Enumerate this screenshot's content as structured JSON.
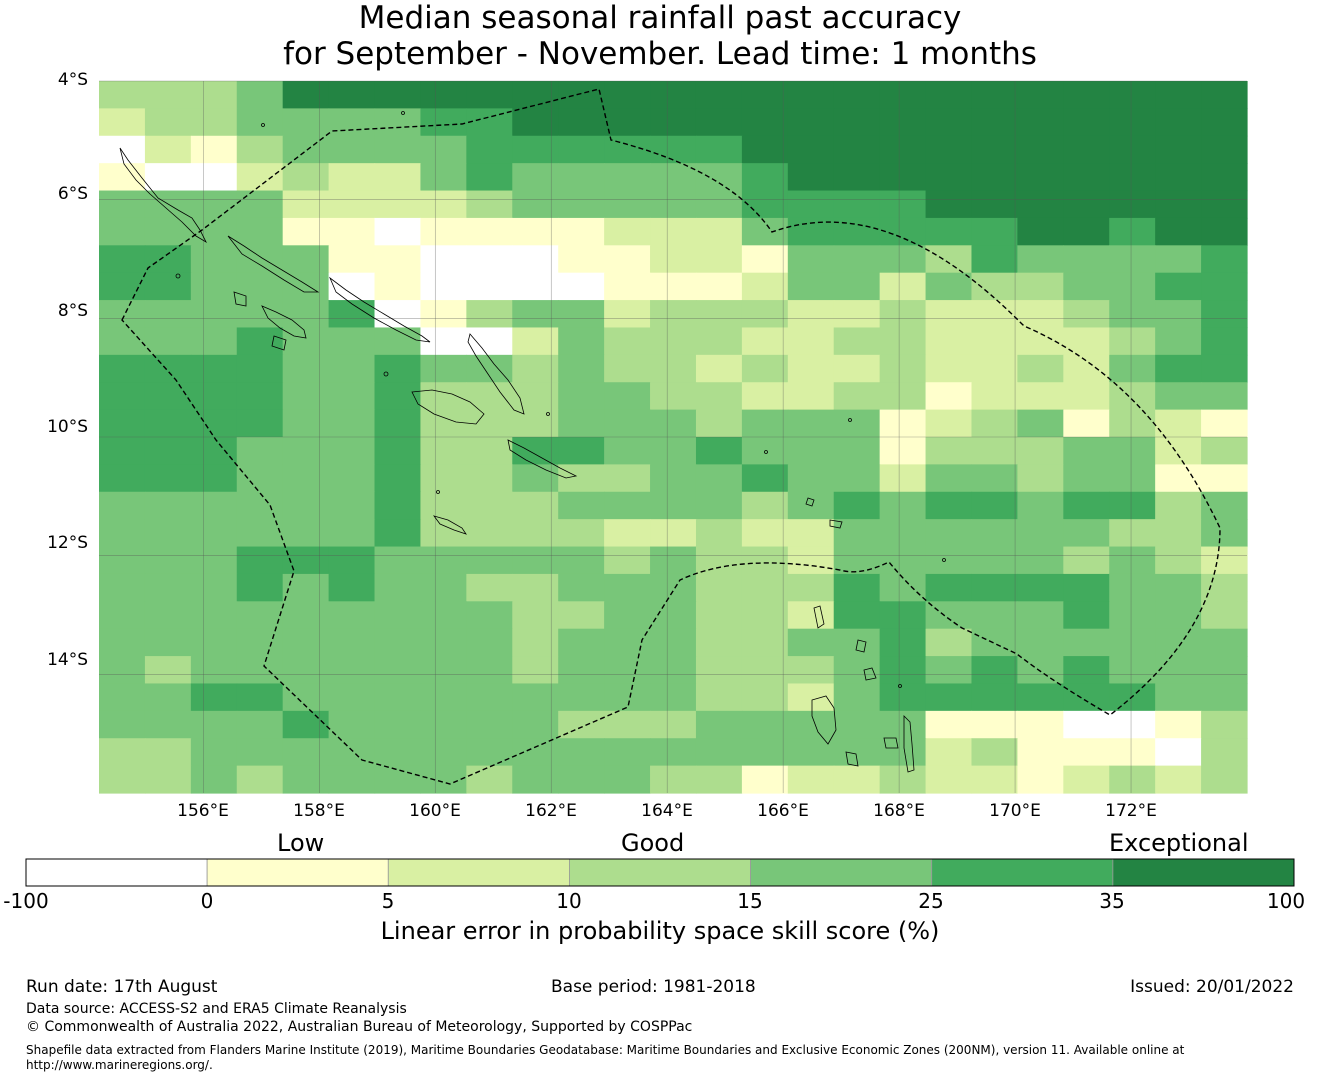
{
  "title": {
    "line1": "Median seasonal rainfall past accuracy",
    "line2": "for September - November. Lead time: 1 months"
  },
  "map": {
    "lat_labels": [
      "4°S",
      "6°S",
      "8°S",
      "10°S",
      "12°S",
      "14°S"
    ],
    "lon_labels": [
      "156°E",
      "158°E",
      "160°E",
      "162°E",
      "164°E",
      "166°E",
      "168°E",
      "170°E",
      "172°E"
    ],
    "lat_range": [
      -16.0,
      -4.0
    ],
    "lon_range": [
      154.2,
      174.0
    ],
    "grid_lines": true,
    "boundary_style": "dashed"
  },
  "legend": {
    "words": [
      "Low",
      "Good",
      "Exceptional"
    ],
    "ticks": [
      "-100",
      "0",
      "5",
      "10",
      "15",
      "25",
      "35",
      "100"
    ],
    "colors": [
      "#ffffff",
      "#ffffcc",
      "#d9f0a3",
      "#addd8e",
      "#78c679",
      "#41ab5d",
      "#238443"
    ],
    "title": "Linear error in probability space skill score (%)"
  },
  "footer": {
    "run_date": "Run date: 17th August",
    "base_period": "Base period: 1981-2018",
    "issued": "Issued: 20/01/2022",
    "data_source": "Data source: ACCESS-S2 and ERA5 Climate Reanalysis",
    "copyright": "© Commonwealth of Australia 2022, Australian Bureau of Meteorology, Supported by COSPPac",
    "shapefile_line1": "Shapefile data extracted from Flanders Marine Institute (2019), Maritime Boundaries Geodatabase: Maritime Boundaries and Exclusive Economic Zones (200NM), version 11. Available online at",
    "shapefile_line2": "http://www.marineregions.org/."
  },
  "skill_grid": [
    "3334666666666666666666666",
    "2334444556666666666666666",
    "0213444455555566666666666",
    "1002322454444456666666666",
    "4444222234444455556666666",
    "4444110111122245555566566",
    "5544411000112214443544445",
    "5544401000011124424334455",
    "4444450134423332232223445",
    "4445444002433322332222345",
    "5555445443433232232232455",
    "5555445333443322331222344",
    "5555445333444344412341321",
    "5554445335544544413334423",
    "5554445334334454424434411",
    "4444445333444434545545534",
    "4444445333322322444444334",
    "4445554444434332444443432",
    "4445454433444333545555443",
    "4444444443344332554445443",
    "4444444443444334453444444",
    "4344444443444333454545444",
    "4455444444444332455555544",
    "4444544444333444441110013",
    "3344444444444444442311103",
    "3343444434443312232212323"
  ]
}
